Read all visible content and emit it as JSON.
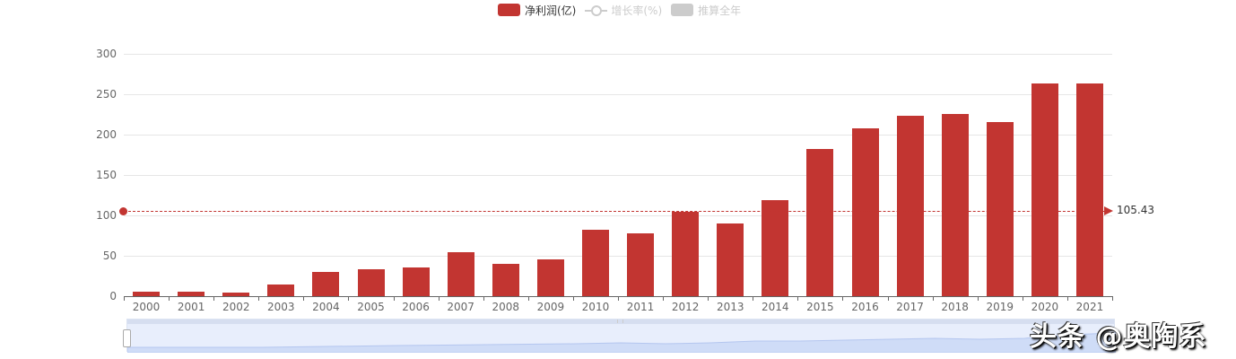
{
  "legend": {
    "items": [
      {
        "label": "净利润(亿)",
        "color": "#c23531",
        "active": true
      },
      {
        "label": "增长率(%)",
        "color": "#cccccc",
        "active": false
      },
      {
        "label": "推算全年",
        "color": "#cccccc",
        "active": false
      }
    ]
  },
  "markline": {
    "value": "105.43"
  },
  "watermark": "头条 @奥陶系",
  "chart_data": {
    "type": "bar",
    "title": "",
    "xlabel": "",
    "ylabel": "",
    "ylim": [
      0,
      300
    ],
    "yticks": [
      "0",
      "50",
      "100",
      "150",
      "200",
      "250",
      "300"
    ],
    "grid": true,
    "legend_position": "top",
    "categories": [
      "2000",
      "2001",
      "2002",
      "2003",
      "2004",
      "2005",
      "2006",
      "2007",
      "2008",
      "2009",
      "2010",
      "2011",
      "2012",
      "2013",
      "2014",
      "2015",
      "2016",
      "2017",
      "2018",
      "2019",
      "2020",
      "2021"
    ],
    "series": [
      {
        "name": "净利润(亿)",
        "color": "#c23531",
        "values": [
          5.5,
          5.5,
          4.5,
          14.5,
          30,
          33,
          36,
          54,
          40,
          46,
          82.5,
          77.5,
          104,
          90,
          118.5,
          182,
          208,
          223,
          226,
          215.5,
          263,
          263
        ]
      },
      {
        "name": "增长率(%)",
        "visible": false,
        "values": []
      },
      {
        "name": "推算全年",
        "visible": false,
        "values": []
      }
    ],
    "annotations": [
      {
        "type": "markLine",
        "label": "105.43",
        "value": 105.43,
        "style": "dashed"
      }
    ],
    "datazoom": {
      "start": 0,
      "end": 100
    }
  }
}
